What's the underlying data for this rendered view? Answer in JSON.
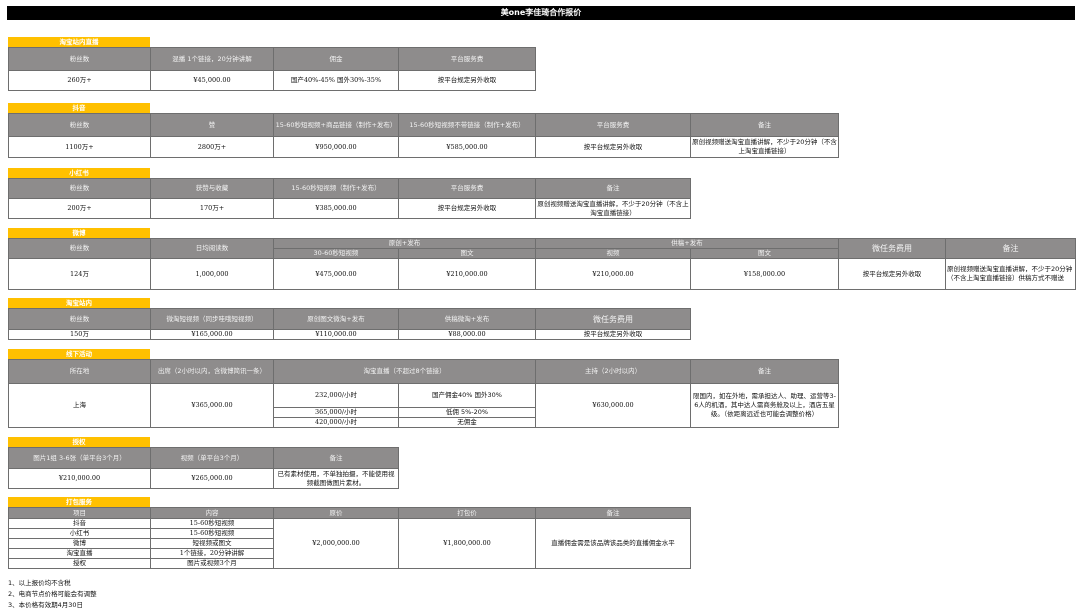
{
  "title": "美one李佳琦合作报价",
  "colors": {
    "tag": "#ffc000",
    "header": "#8e8c8c",
    "title_bar": "#000000"
  },
  "taobao_live": {
    "tag": "淘宝站内直播",
    "headers": [
      "粉丝数",
      "混播 1个链接，20分钟讲解",
      "佣金",
      "平台服务费"
    ],
    "row": [
      "260万+",
      "¥45,000.00",
      "国产40%-45%  国外30%-35%",
      "按平台规定另外收取"
    ]
  },
  "douyin": {
    "tag": "抖音",
    "headers": [
      "粉丝数",
      "赞",
      "15-60秒短视频+商品链接（制作+发布）",
      "15-60秒短视频不带链接（制作+发布）",
      "平台服务费",
      "备注"
    ],
    "row": [
      "1100万+",
      "2800万+",
      "¥950,000.00",
      "¥585,000.00",
      "按平台规定另外收取",
      "原创视频赠送淘宝直播讲解，不少于20分钟（不含上淘宝直播链接）"
    ]
  },
  "xiaohongshu": {
    "tag": "小红书",
    "headers": [
      "粉丝数",
      "获赞与收藏",
      "15-60秒短视频（制作+发布）",
      "平台服务费",
      "备注"
    ],
    "row": [
      "200万+",
      "170万+",
      "¥385,000.00",
      "按平台规定另外收取",
      "原创视频赠送淘宝直播讲解，不少于20分钟（不含上淘宝直播链接）"
    ]
  },
  "weibo": {
    "tag": "微博",
    "headers": [
      "粉丝数",
      "日均阅读数",
      "原创+发布",
      "供稿+发布",
      "微任务费用",
      "备注"
    ],
    "subheaders": [
      "30-60秒短视频",
      "图文",
      "视频",
      "图文"
    ],
    "row": [
      "124万",
      "1,000,000",
      "¥475,000.00",
      "¥210,000.00",
      "¥210,000.00",
      "¥158,000.00",
      "按平台规定另外收取",
      "原创视频赠送淘宝直播讲解，不少于20分钟（不含上淘宝直播链接）供稿方式不赠送"
    ]
  },
  "taobao_site": {
    "tag": "淘宝站内",
    "headers": [
      "粉丝数",
      "微淘短视频（同步哇哦短视频）",
      "原创图文微淘+发布",
      "供稿微淘+发布",
      "微任务费用"
    ],
    "row": [
      "150万",
      "¥165,000.00",
      "¥110,000.00",
      "¥88,000.00",
      "按平台规定另外收取"
    ]
  },
  "offline": {
    "tag": "线下活动",
    "headers": [
      "所在地",
      "出席（2小时以内，含微博简讯一条）",
      "淘宝直播（不超过8个链接）",
      "主持（2小时以内）",
      "备注"
    ],
    "location": "上海",
    "attend": "¥365,000.00",
    "live_rows": [
      [
        "232,000/小时",
        "国产佣金40% 国外30%"
      ],
      [
        "365,000/小时",
        "低佣 5%-20%"
      ],
      [
        "420,000/小时",
        "无佣金"
      ]
    ],
    "host": "¥630,000.00",
    "note": "限国内，如在外地，需承担达人、助理、运营等3-6人的机酒，其中达人需商务舱及以上，酒店五星级。（依距离远近也可能会调整价格）"
  },
  "license": {
    "tag": "授权",
    "headers": [
      "图片1组 3-6张（单平台3个月）",
      "视频（单平台3个月）",
      "备注"
    ],
    "row": [
      "¥210,000.00",
      "¥265,000.00",
      "已有素材使用，不单独拍摄，不能使用视频截图做图片素材。"
    ]
  },
  "package": {
    "tag": "打包服务",
    "headers": [
      "项目",
      "内容",
      "原价",
      "打包价",
      "备注"
    ],
    "items": [
      [
        "抖音",
        "15-60秒短视频"
      ],
      [
        "小红书",
        "15-60秒短视频"
      ],
      [
        "微博",
        "短视频或图文"
      ],
      [
        "淘宝直播",
        "1个链接，20分钟讲解"
      ],
      [
        "授权",
        "图片或视频3个月"
      ]
    ],
    "original": "¥2,000,000.00",
    "package_price": "¥1,800,000.00",
    "note": "直播佣金需是该品牌该品类的直播佣金水平"
  },
  "notes": [
    "1、以上报价均不含税",
    "2、电商节点价格可能会有调整",
    "3、本价格有效期4月30日"
  ]
}
